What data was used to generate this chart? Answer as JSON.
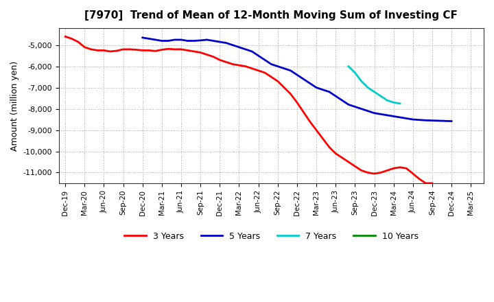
{
  "title": "[7970]  Trend of Mean of 12-Month Moving Sum of Investing CF",
  "ylabel": "Amount (million yen)",
  "background_color": "#ffffff",
  "plot_bg_color": "#ffffff",
  "grid_color": "#aaaaaa",
  "yticks": [
    -11000,
    -10000,
    -9000,
    -8000,
    -7000,
    -6000,
    -5000
  ],
  "legend": [
    {
      "label": "3 Years",
      "color": "#ff0000"
    },
    {
      "label": "5 Years",
      "color": "#0000cc"
    },
    {
      "label": "7 Years",
      "color": "#00cccc"
    },
    {
      "label": "10 Years",
      "color": "#008800"
    }
  ],
  "series": {
    "3yr": {
      "color": "#ff0000",
      "x": [
        0,
        1,
        2,
        3,
        4,
        5,
        6,
        7,
        8,
        9,
        10,
        11,
        12,
        13,
        14,
        15,
        16,
        17,
        18,
        19,
        20,
        21,
        22,
        23,
        24,
        25,
        26,
        27,
        28,
        29,
        30,
        31,
        32,
        33,
        34,
        35,
        36,
        37,
        38,
        39,
        40,
        41,
        42,
        43,
        44,
        45,
        46,
        47,
        48,
        49,
        50,
        51,
        52,
        53,
        54,
        55,
        56,
        57
      ],
      "y": [
        -4600,
        -4700,
        -4850,
        -5100,
        -5200,
        -5250,
        -5250,
        -5300,
        -5270,
        -5200,
        -5200,
        -5220,
        -5250,
        -5250,
        -5280,
        -5220,
        -5180,
        -5200,
        -5200,
        -5250,
        -5300,
        -5350,
        -5450,
        -5550,
        -5700,
        -5800,
        -5900,
        -5950,
        -6000,
        -6100,
        -6200,
        -6300,
        -6500,
        -6700,
        -7000,
        -7300,
        -7700,
        -8150,
        -8600,
        -9000,
        -9400,
        -9800,
        -10100,
        -10300,
        -10500,
        -10700,
        -10900,
        -11000,
        -11050,
        -11000,
        -10900,
        -10800,
        -10750,
        -10800,
        -11050,
        -11300,
        -11500,
        -11500
      ]
    },
    "5yr": {
      "color": "#0000cc",
      "x": [
        12,
        13,
        14,
        15,
        16,
        17,
        18,
        19,
        20,
        21,
        22,
        23,
        24,
        25,
        26,
        27,
        28,
        29,
        30,
        31,
        32,
        33,
        34,
        35,
        36,
        37,
        38,
        39,
        40,
        41,
        42,
        43,
        44,
        45,
        46,
        47,
        48,
        49,
        50,
        51,
        52,
        53,
        54,
        55,
        56,
        57,
        58,
        59,
        60
      ],
      "y": [
        -4650,
        -4700,
        -4750,
        -4800,
        -4800,
        -4750,
        -4750,
        -4800,
        -4800,
        -4780,
        -4750,
        -4800,
        -4850,
        -4900,
        -5000,
        -5100,
        -5200,
        -5300,
        -5500,
        -5700,
        -5900,
        -6000,
        -6100,
        -6200,
        -6400,
        -6600,
        -6800,
        -7000,
        -7100,
        -7200,
        -7400,
        -7600,
        -7800,
        -7900,
        -8000,
        -8100,
        -8200,
        -8250,
        -8300,
        -8350,
        -8400,
        -8450,
        -8500,
        -8520,
        -8540,
        -8550,
        -8560,
        -8570,
        -8580
      ]
    },
    "7yr": {
      "color": "#00cccc",
      "x": [
        44,
        45,
        46,
        47,
        48,
        49,
        50,
        51,
        52
      ],
      "y": [
        -6000,
        -6300,
        -6700,
        -7000,
        -7200,
        -7400,
        -7600,
        -7700,
        -7750
      ]
    },
    "10yr": {
      "color": "#008800",
      "x": [],
      "y": []
    }
  },
  "xtick_labels": [
    "Dec-19",
    "Mar-20",
    "Jun-20",
    "Sep-20",
    "Dec-20",
    "Mar-21",
    "Jun-21",
    "Sep-21",
    "Dec-21",
    "Mar-22",
    "Jun-22",
    "Sep-22",
    "Dec-22",
    "Mar-23",
    "Jun-23",
    "Sep-23",
    "Dec-23",
    "Mar-24",
    "Jun-24",
    "Sep-24",
    "Dec-24",
    "Mar-25"
  ],
  "xtick_positions": [
    0,
    3,
    6,
    9,
    12,
    15,
    18,
    21,
    24,
    27,
    30,
    33,
    36,
    39,
    42,
    45,
    48,
    51,
    54,
    57,
    60,
    63
  ]
}
